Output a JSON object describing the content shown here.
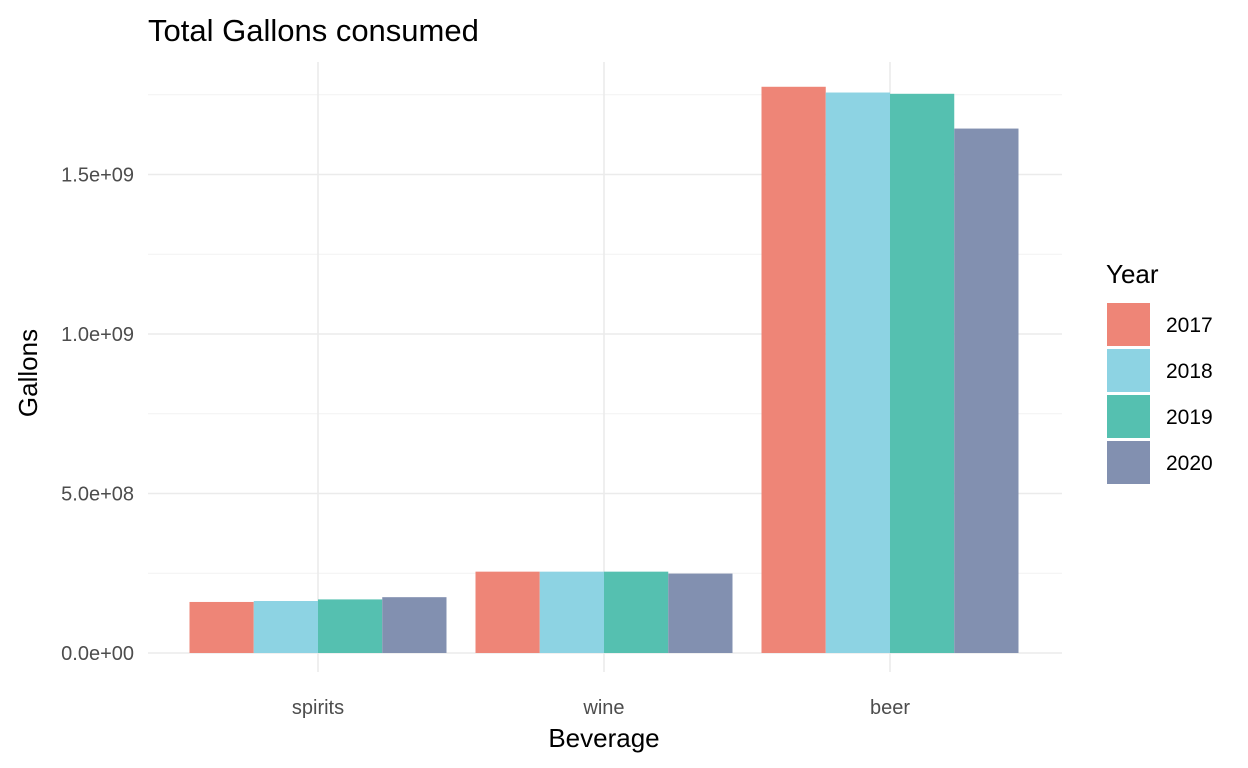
{
  "chart_data": {
    "type": "bar",
    "title": "Total Gallons consumed",
    "xlabel": "Beverage",
    "ylabel": "Gallons",
    "categories": [
      "spirits",
      "wine",
      "beer"
    ],
    "legend_title": "Year",
    "legend_position": "right",
    "grid": true,
    "ylim": [
      0,
      1850000000
    ],
    "yticks": [
      0,
      500000000,
      1000000000,
      1500000000
    ],
    "ytick_labels": [
      "0.0e+00",
      "5.0e+08",
      "1.0e+09",
      "1.5e+09"
    ],
    "series": [
      {
        "name": "2017",
        "color": "#EE8577",
        "values": [
          160000000,
          255000000,
          1775000000
        ]
      },
      {
        "name": "2018",
        "color": "#8DD3E3",
        "values": [
          163000000,
          255000000,
          1757000000
        ]
      },
      {
        "name": "2019",
        "color": "#55C0B0",
        "values": [
          168000000,
          255000000,
          1753000000
        ]
      },
      {
        "name": "2020",
        "color": "#8290B0",
        "values": [
          175000000,
          249000000,
          1644000000
        ]
      }
    ]
  }
}
